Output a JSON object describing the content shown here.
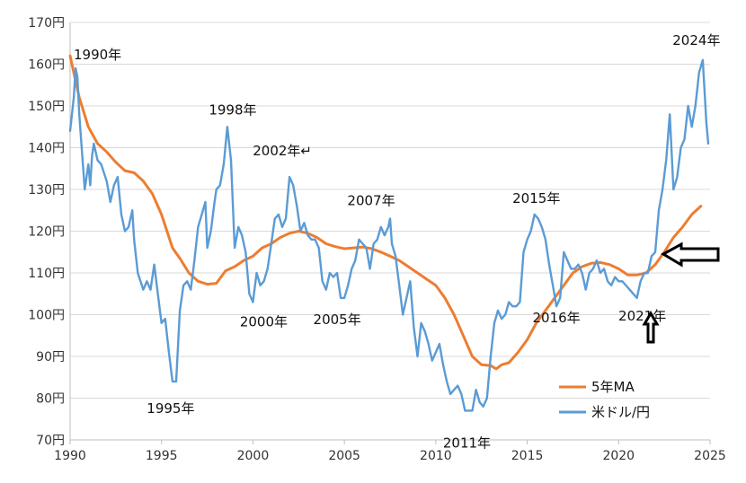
{
  "chart_data": {
    "type": "line",
    "xlim": [
      1990,
      2025
    ],
    "ylim": [
      70,
      170
    ],
    "x_ticks": [
      "1990",
      "1995",
      "2000",
      "2005",
      "2010",
      "2015",
      "2020",
      "2025"
    ],
    "y_ticks": [
      "70円",
      "80円",
      "90円",
      "100円",
      "110円",
      "120円",
      "130円",
      "140円",
      "150円",
      "160円",
      "170円"
    ],
    "grid": "horizontal",
    "legend_position": "bottom-right",
    "series": [
      {
        "name": "5年MA",
        "color": "#ED7D31",
        "points": [
          [
            1990.0,
            162
          ],
          [
            1990.5,
            152
          ],
          [
            1991.0,
            145
          ],
          [
            1991.5,
            141
          ],
          [
            1992.0,
            139
          ],
          [
            1992.5,
            136.5
          ],
          [
            1993.0,
            134.5
          ],
          [
            1993.5,
            134
          ],
          [
            1994.0,
            132
          ],
          [
            1994.5,
            129
          ],
          [
            1995.0,
            124
          ],
          [
            1995.3,
            120
          ],
          [
            1995.6,
            116
          ],
          [
            1996.0,
            113.5
          ],
          [
            1996.5,
            110
          ],
          [
            1997.0,
            108
          ],
          [
            1997.5,
            107.3
          ],
          [
            1998.0,
            107.5
          ],
          [
            1998.5,
            110.5
          ],
          [
            1999.0,
            111.5
          ],
          [
            1999.5,
            113
          ],
          [
            2000.0,
            114
          ],
          [
            2000.5,
            116
          ],
          [
            2001.0,
            117
          ],
          [
            2001.5,
            118.5
          ],
          [
            2002.0,
            119.5
          ],
          [
            2002.5,
            120
          ],
          [
            2003.0,
            119.5
          ],
          [
            2003.5,
            118.5
          ],
          [
            2004.0,
            117
          ],
          [
            2004.5,
            116.3
          ],
          [
            2005.0,
            115.8
          ],
          [
            2005.5,
            116
          ],
          [
            2006.0,
            116.2
          ],
          [
            2006.5,
            115.8
          ],
          [
            2007.0,
            115
          ],
          [
            2007.5,
            114
          ],
          [
            2008.0,
            113
          ],
          [
            2008.5,
            111.5
          ],
          [
            2009.0,
            110
          ],
          [
            2009.5,
            108.5
          ],
          [
            2010.0,
            107
          ],
          [
            2010.5,
            104
          ],
          [
            2011.0,
            100
          ],
          [
            2011.5,
            95
          ],
          [
            2012.0,
            90
          ],
          [
            2012.5,
            88
          ],
          [
            2013.0,
            87.8
          ],
          [
            2013.3,
            87
          ],
          [
            2013.6,
            88
          ],
          [
            2014.0,
            88.5
          ],
          [
            2014.5,
            91
          ],
          [
            2015.0,
            94
          ],
          [
            2015.5,
            98
          ],
          [
            2016.0,
            101
          ],
          [
            2016.5,
            104
          ],
          [
            2017.0,
            107
          ],
          [
            2017.5,
            110
          ],
          [
            2018.0,
            111.5
          ],
          [
            2018.5,
            112.3
          ],
          [
            2019.0,
            112.5
          ],
          [
            2019.5,
            112
          ],
          [
            2020.0,
            111
          ],
          [
            2020.5,
            109.5
          ],
          [
            2021.0,
            109.5
          ],
          [
            2021.5,
            110
          ],
          [
            2022.0,
            112
          ],
          [
            2022.5,
            115
          ],
          [
            2023.0,
            118.5
          ],
          [
            2023.5,
            121
          ],
          [
            2024.0,
            124
          ],
          [
            2024.5,
            126
          ]
        ]
      },
      {
        "name": "米ドル/円",
        "color": "#5B9BD5",
        "points": [
          [
            1990.0,
            144
          ],
          [
            1990.2,
            152
          ],
          [
            1990.3,
            159
          ],
          [
            1990.4,
            157
          ],
          [
            1990.5,
            148
          ],
          [
            1990.6,
            142
          ],
          [
            1990.8,
            130
          ],
          [
            1991.0,
            136
          ],
          [
            1991.1,
            131
          ],
          [
            1991.2,
            138
          ],
          [
            1991.3,
            141
          ],
          [
            1991.5,
            137
          ],
          [
            1991.7,
            136
          ],
          [
            1992.0,
            132
          ],
          [
            1992.2,
            127
          ],
          [
            1992.4,
            131
          ],
          [
            1992.6,
            133
          ],
          [
            1992.8,
            124
          ],
          [
            1993.0,
            120
          ],
          [
            1993.2,
            121
          ],
          [
            1993.4,
            125
          ],
          [
            1993.5,
            118
          ],
          [
            1993.7,
            110
          ],
          [
            1994.0,
            106
          ],
          [
            1994.2,
            108
          ],
          [
            1994.4,
            106
          ],
          [
            1994.6,
            112
          ],
          [
            1994.8,
            105
          ],
          [
            1995.0,
            98
          ],
          [
            1995.2,
            99
          ],
          [
            1995.4,
            91
          ],
          [
            1995.6,
            84
          ],
          [
            1995.8,
            84
          ],
          [
            1996.0,
            101
          ],
          [
            1996.2,
            107
          ],
          [
            1996.4,
            108
          ],
          [
            1996.6,
            106
          ],
          [
            1996.8,
            113
          ],
          [
            1997.0,
            121
          ],
          [
            1997.2,
            124
          ],
          [
            1997.4,
            127
          ],
          [
            1997.5,
            116
          ],
          [
            1997.7,
            120
          ],
          [
            1997.9,
            127
          ],
          [
            1998.0,
            130
          ],
          [
            1998.2,
            131
          ],
          [
            1998.4,
            136
          ],
          [
            1998.6,
            145
          ],
          [
            1998.8,
            137
          ],
          [
            1999.0,
            116
          ],
          [
            1999.2,
            121
          ],
          [
            1999.4,
            119
          ],
          [
            1999.6,
            115
          ],
          [
            1999.8,
            105
          ],
          [
            2000.0,
            103
          ],
          [
            2000.2,
            110
          ],
          [
            2000.4,
            107
          ],
          [
            2000.6,
            108
          ],
          [
            2000.8,
            111
          ],
          [
            2001.0,
            117
          ],
          [
            2001.2,
            123
          ],
          [
            2001.4,
            124
          ],
          [
            2001.6,
            121
          ],
          [
            2001.8,
            123
          ],
          [
            2002.0,
            133
          ],
          [
            2002.2,
            131
          ],
          [
            2002.4,
            126
          ],
          [
            2002.6,
            120
          ],
          [
            2002.8,
            122
          ],
          [
            2003.0,
            119
          ],
          [
            2003.2,
            118
          ],
          [
            2003.4,
            118
          ],
          [
            2003.6,
            116
          ],
          [
            2003.8,
            108
          ],
          [
            2004.0,
            106
          ],
          [
            2004.2,
            110
          ],
          [
            2004.4,
            109
          ],
          [
            2004.6,
            110
          ],
          [
            2004.8,
            104
          ],
          [
            2005.0,
            104
          ],
          [
            2005.2,
            107
          ],
          [
            2005.4,
            111
          ],
          [
            2005.6,
            113
          ],
          [
            2005.8,
            118
          ],
          [
            2006.0,
            117
          ],
          [
            2006.2,
            116
          ],
          [
            2006.4,
            111
          ],
          [
            2006.6,
            117
          ],
          [
            2006.8,
            118
          ],
          [
            2007.0,
            121
          ],
          [
            2007.2,
            119
          ],
          [
            2007.4,
            121
          ],
          [
            2007.5,
            123
          ],
          [
            2007.6,
            117
          ],
          [
            2007.8,
            114
          ],
          [
            2008.0,
            107
          ],
          [
            2008.2,
            100
          ],
          [
            2008.4,
            104
          ],
          [
            2008.6,
            108
          ],
          [
            2008.8,
            97
          ],
          [
            2009.0,
            90
          ],
          [
            2009.2,
            98
          ],
          [
            2009.4,
            96
          ],
          [
            2009.6,
            93
          ],
          [
            2009.8,
            89
          ],
          [
            2010.0,
            91
          ],
          [
            2010.2,
            93
          ],
          [
            2010.4,
            88
          ],
          [
            2010.6,
            84
          ],
          [
            2010.8,
            81
          ],
          [
            2011.0,
            82
          ],
          [
            2011.2,
            83
          ],
          [
            2011.4,
            81
          ],
          [
            2011.6,
            77
          ],
          [
            2011.8,
            77
          ],
          [
            2012.0,
            77
          ],
          [
            2012.2,
            82
          ],
          [
            2012.4,
            79
          ],
          [
            2012.6,
            78
          ],
          [
            2012.8,
            80
          ],
          [
            2013.0,
            90
          ],
          [
            2013.2,
            98
          ],
          [
            2013.4,
            101
          ],
          [
            2013.6,
            99
          ],
          [
            2013.8,
            100
          ],
          [
            2014.0,
            103
          ],
          [
            2014.2,
            102
          ],
          [
            2014.4,
            102
          ],
          [
            2014.6,
            103
          ],
          [
            2014.8,
            115
          ],
          [
            2015.0,
            118
          ],
          [
            2015.2,
            120
          ],
          [
            2015.4,
            124
          ],
          [
            2015.6,
            123
          ],
          [
            2015.8,
            121
          ],
          [
            2016.0,
            118
          ],
          [
            2016.2,
            112
          ],
          [
            2016.4,
            107
          ],
          [
            2016.6,
            102
          ],
          [
            2016.8,
            104
          ],
          [
            2017.0,
            115
          ],
          [
            2017.2,
            113
          ],
          [
            2017.4,
            111
          ],
          [
            2017.6,
            111
          ],
          [
            2017.8,
            112
          ],
          [
            2018.0,
            110
          ],
          [
            2018.2,
            106
          ],
          [
            2018.4,
            110
          ],
          [
            2018.6,
            111
          ],
          [
            2018.8,
            113
          ],
          [
            2019.0,
            110
          ],
          [
            2019.2,
            111
          ],
          [
            2019.4,
            108
          ],
          [
            2019.6,
            107
          ],
          [
            2019.8,
            109
          ],
          [
            2020.0,
            108
          ],
          [
            2020.2,
            108
          ],
          [
            2020.4,
            107
          ],
          [
            2020.6,
            106
          ],
          [
            2020.8,
            105
          ],
          [
            2021.0,
            104
          ],
          [
            2021.2,
            108
          ],
          [
            2021.4,
            110
          ],
          [
            2021.6,
            110
          ],
          [
            2021.8,
            114
          ],
          [
            2022.0,
            115
          ],
          [
            2022.2,
            125
          ],
          [
            2022.4,
            130
          ],
          [
            2022.6,
            137
          ],
          [
            2022.8,
            148
          ],
          [
            2023.0,
            130
          ],
          [
            2023.2,
            133
          ],
          [
            2023.4,
            140
          ],
          [
            2023.6,
            142
          ],
          [
            2023.8,
            150
          ],
          [
            2024.0,
            145
          ],
          [
            2024.2,
            150
          ],
          [
            2024.4,
            158
          ],
          [
            2024.6,
            161
          ],
          [
            2024.8,
            146
          ],
          [
            2024.9,
            141
          ]
        ]
      }
    ],
    "annotations": [
      {
        "text": "1990年",
        "x": 1990.0,
        "y": 162
      },
      {
        "text": "1995年",
        "x": 1995.5,
        "y": 84
      },
      {
        "text": "1998年",
        "x": 1998.6,
        "y": 145
      },
      {
        "text": "2000年",
        "x": 2000.0,
        "y": 103
      },
      {
        "text": "2002年↵",
        "x": 2002.0,
        "y": 133
      },
      {
        "text": "2005年",
        "x": 2005.0,
        "y": 104
      },
      {
        "text": "2007年",
        "x": 2007.5,
        "y": 123
      },
      {
        "text": "2011年",
        "x": 2011.8,
        "y": 77
      },
      {
        "text": "2015年",
        "x": 2015.5,
        "y": 124
      },
      {
        "text": "2016年",
        "x": 2016.5,
        "y": 102
      },
      {
        "text": "2021年",
        "x": 2021.0,
        "y": 104
      },
      {
        "text": "2024年",
        "x": 2024.6,
        "y": 161
      }
    ]
  }
}
